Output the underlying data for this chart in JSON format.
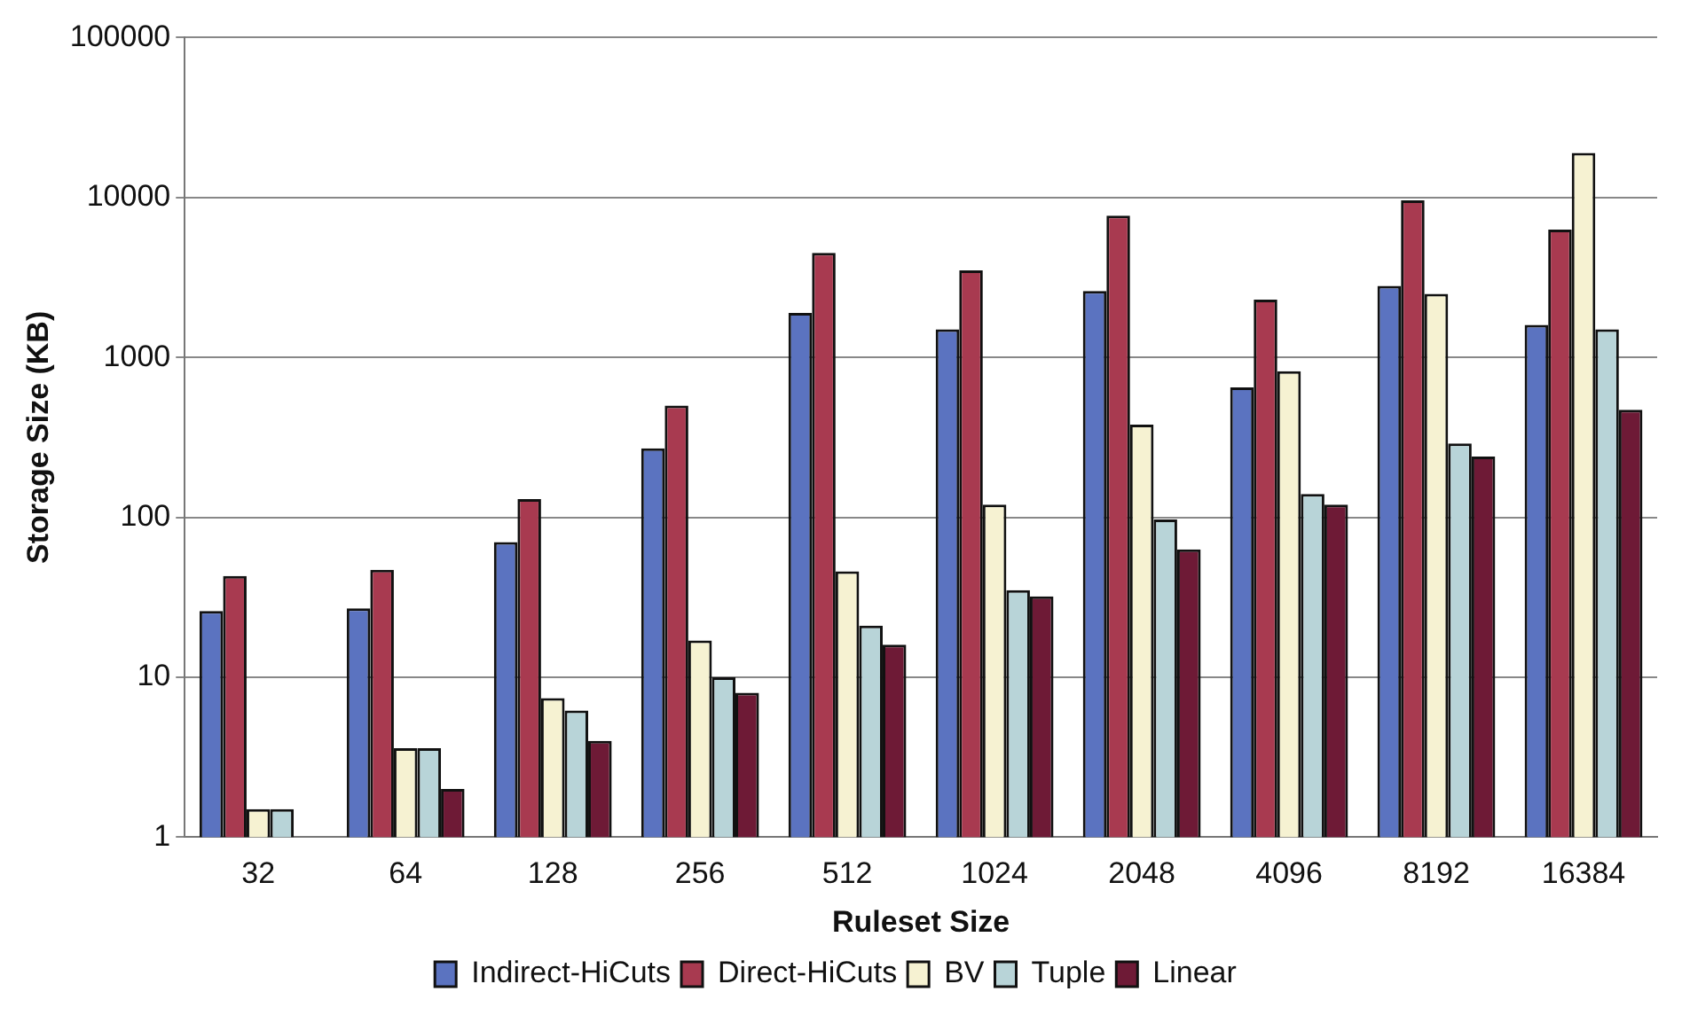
{
  "chart_data": {
    "type": "bar",
    "xlabel": "Ruleset Size",
    "ylabel": "Storage Size (KB)",
    "categories": [
      "32",
      "64",
      "128",
      "256",
      "512",
      "1024",
      "2048",
      "4096",
      "8192",
      "16384"
    ],
    "series": [
      {
        "name": "Indirect-HiCuts",
        "color": "#5b73c0",
        "values": [
          26,
          27,
          70,
          270,
          1900,
          1500,
          2600,
          650,
          2800,
          1600
        ]
      },
      {
        "name": "Direct-HiCuts",
        "color": "#a83a50",
        "values": [
          43,
          47,
          130,
          500,
          4500,
          3500,
          7700,
          2300,
          9600,
          6300
        ]
      },
      {
        "name": "BV",
        "color": "#f6f2d2",
        "values": [
          1.5,
          3.6,
          7.4,
          17,
          46,
          120,
          380,
          820,
          2500,
          19000
        ]
      },
      {
        "name": "Tuple",
        "color": "#b8d4d8",
        "values": [
          1.5,
          3.6,
          6.2,
          10,
          21,
          35,
          97,
          140,
          290,
          1500
        ]
      },
      {
        "name": "Linear",
        "color": "#6e1a36",
        "values": [
          null,
          2,
          4,
          8,
          16,
          32,
          63,
          120,
          240,
          470
        ]
      }
    ],
    "log": "y",
    "ylim": [
      1,
      100000
    ],
    "yticks": [
      1,
      10,
      100,
      1000,
      10000,
      100000
    ],
    "grid": "y",
    "legend": "bottom"
  }
}
